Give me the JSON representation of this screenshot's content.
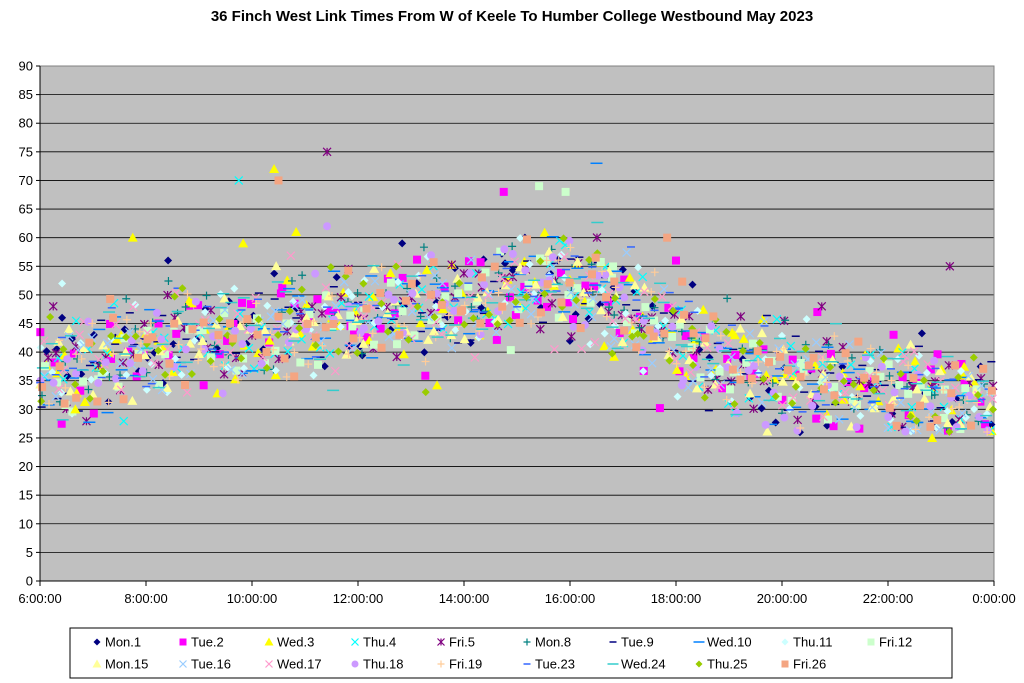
{
  "chart_data": {
    "type": "scatter",
    "title": "36 Finch West Link Times From W of Keele To Humber College Westbound May 2023",
    "xlabel": "",
    "ylabel": "",
    "xlim": [
      "6:00:00",
      "0:00:00"
    ],
    "ylim": [
      0,
      90
    ],
    "x_ticks": [
      "6:00:00",
      "8:00:00",
      "10:00:00",
      "12:00:00",
      "14:00:00",
      "16:00:00",
      "18:00:00",
      "20:00:00",
      "22:00:00",
      "0:00:00"
    ],
    "y_ticks": [
      0,
      5,
      10,
      15,
      20,
      25,
      30,
      35,
      40,
      45,
      50,
      55,
      60,
      65,
      70,
      75,
      80,
      85,
      90
    ],
    "grid": true,
    "plot_background": "#c0c0c0",
    "legend_position": "bottom",
    "series": [
      {
        "name": "Mon.1",
        "marker": "diamond",
        "color": "#000080"
      },
      {
        "name": "Tue.2",
        "marker": "square",
        "color": "#ff00ff"
      },
      {
        "name": "Wed.3",
        "marker": "triangle",
        "color": "#ffff00"
      },
      {
        "name": "Thu.4",
        "marker": "x",
        "color": "#00ffff"
      },
      {
        "name": "Fri.5",
        "marker": "star",
        "color": "#800080"
      },
      {
        "name": "Mon.8",
        "marker": "plus",
        "color": "#008080"
      },
      {
        "name": "Tue.9",
        "marker": "dash",
        "color": "#000080"
      },
      {
        "name": "Wed.10",
        "marker": "longdash",
        "color": "#0080ff"
      },
      {
        "name": "Thu.11",
        "marker": "diamond",
        "color": "#ccffff"
      },
      {
        "name": "Fri.12",
        "marker": "square",
        "color": "#ccffcc"
      },
      {
        "name": "Mon.15",
        "marker": "triangle",
        "color": "#ffff99"
      },
      {
        "name": "Tue.16",
        "marker": "x",
        "color": "#99ccff"
      },
      {
        "name": "Wed.17",
        "marker": "x",
        "color": "#ff99cc"
      },
      {
        "name": "Thu.18",
        "marker": "circle",
        "color": "#cc99ff"
      },
      {
        "name": "Fri.19",
        "marker": "plus",
        "color": "#ffcc99"
      },
      {
        "name": "Tue.23",
        "marker": "dash",
        "color": "#3366ff"
      },
      {
        "name": "Wed.24",
        "marker": "longdash",
        "color": "#33cccc"
      },
      {
        "name": "Thu.25",
        "marker": "diamond",
        "color": "#99cc00"
      },
      {
        "name": "Fri.26",
        "marker": "square",
        "color": "#f4a582"
      }
    ],
    "trend": [
      {
        "t": "6:00:00",
        "y": 35
      },
      {
        "t": "7:00:00",
        "y": 38
      },
      {
        "t": "8:00:00",
        "y": 41
      },
      {
        "t": "9:00:00",
        "y": 43
      },
      {
        "t": "10:00:00",
        "y": 43
      },
      {
        "t": "11:00:00",
        "y": 44
      },
      {
        "t": "12:00:00",
        "y": 46
      },
      {
        "t": "13:00:00",
        "y": 47
      },
      {
        "t": "14:00:00",
        "y": 48
      },
      {
        "t": "15:00:00",
        "y": 52
      },
      {
        "t": "16:00:00",
        "y": 52
      },
      {
        "t": "17:00:00",
        "y": 48
      },
      {
        "t": "18:00:00",
        "y": 43
      },
      {
        "t": "19:00:00",
        "y": 38
      },
      {
        "t": "20:00:00",
        "y": 36
      },
      {
        "t": "21:00:00",
        "y": 35
      },
      {
        "t": "22:00:00",
        "y": 33
      },
      {
        "t": "23:00:00",
        "y": 32
      },
      {
        "t": "0:00:00",
        "y": 32
      }
    ],
    "spread": 4.5,
    "outliers": [
      {
        "series": "Fri.5",
        "t": "11:25:00",
        "y": 75
      },
      {
        "series": "Wed.3",
        "t": "10:25:00",
        "y": 72
      },
      {
        "series": "Fri.26",
        "t": "10:30:00",
        "y": 70
      },
      {
        "series": "Wed.3",
        "t": "10:50:00",
        "y": 61
      },
      {
        "series": "Wed.3",
        "t": "9:50:00",
        "y": 59
      },
      {
        "series": "Wed.3",
        "t": "7:45:00",
        "y": 60
      },
      {
        "series": "Fri.12",
        "t": "15:25:00",
        "y": 69
      },
      {
        "series": "Tue.2",
        "t": "14:45:00",
        "y": 68
      },
      {
        "series": "Wed.10",
        "t": "16:30:00",
        "y": 73
      },
      {
        "series": "Fri.12",
        "t": "15:55:00",
        "y": 68
      },
      {
        "series": "Mon.1",
        "t": "12:50:00",
        "y": 59
      },
      {
        "series": "Fri.26",
        "t": "17:50:00",
        "y": 60
      },
      {
        "series": "Tue.2",
        "t": "18:00:00",
        "y": 56
      },
      {
        "series": "Fri.5",
        "t": "23:10:00",
        "y": 55
      },
      {
        "series": "Wed.3",
        "t": "22:50:00",
        "y": 25
      },
      {
        "series": "Tue.2",
        "t": "20:40:00",
        "y": 47
      },
      {
        "series": "Fri.5",
        "t": "20:45:00",
        "y": 48
      },
      {
        "series": "Mon.1",
        "t": "6:25:00",
        "y": 46
      },
      {
        "series": "Fri.5",
        "t": "6:15:00",
        "y": 48
      },
      {
        "series": "Thu.11",
        "t": "6:25:00",
        "y": 52
      },
      {
        "series": "Wed.3",
        "t": "6:40:00",
        "y": 30
      },
      {
        "series": "Thu.18",
        "t": "11:25:00",
        "y": 62
      },
      {
        "series": "Mon.1",
        "t": "8:25:00",
        "y": 56
      },
      {
        "series": "Thu.4",
        "t": "9:45:00",
        "y": 70
      }
    ]
  }
}
